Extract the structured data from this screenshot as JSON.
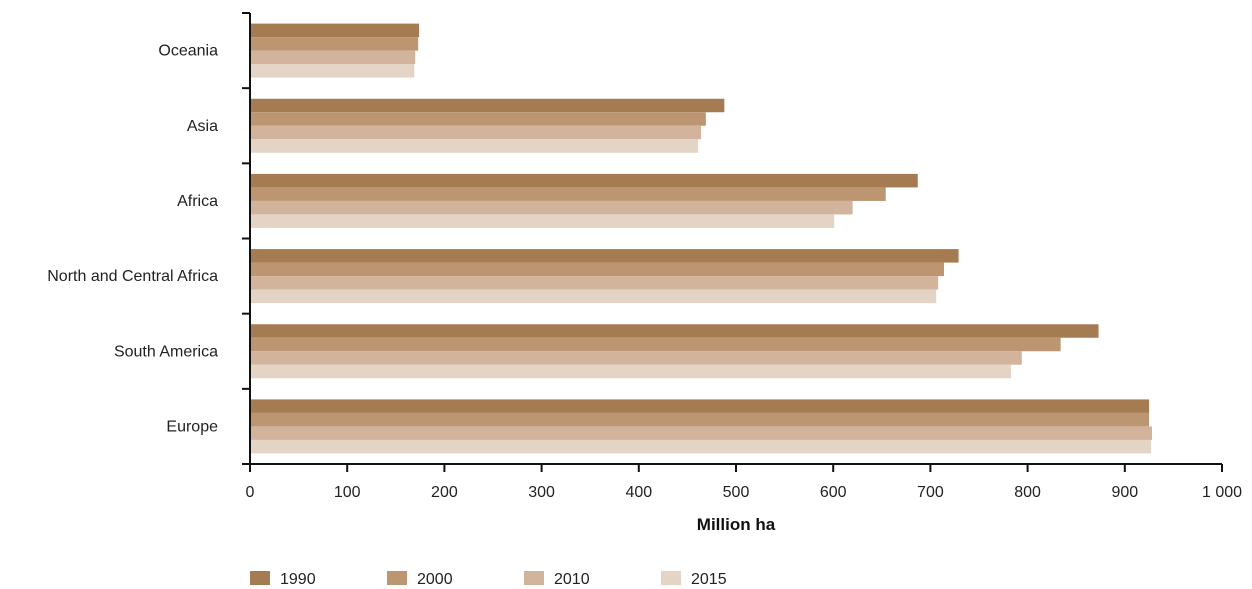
{
  "chart_data": {
    "type": "bar",
    "orientation": "horizontal",
    "categories": [
      "Europe",
      "South America",
      "North and Central Africa",
      "Africa",
      "Asia",
      "Oceania"
    ],
    "series": [
      {
        "name": "1990",
        "color": "#a57c52",
        "values": [
          925,
          873,
          729,
          687,
          488,
          174
        ]
      },
      {
        "name": "2000",
        "color": "#bb9670",
        "values": [
          925,
          834,
          714,
          654,
          469,
          173
        ]
      },
      {
        "name": "2010",
        "color": "#d2b39b",
        "values": [
          928,
          794,
          708,
          620,
          464,
          170
        ]
      },
      {
        "name": "2015",
        "color": "#e4d4c5",
        "values": [
          927,
          783,
          706,
          601,
          461,
          169
        ]
      }
    ],
    "xlabel": "Million ha",
    "xlim": [
      0,
      1000
    ],
    "xticks": [
      0,
      100,
      200,
      300,
      400,
      500,
      600,
      700,
      800,
      900,
      1000
    ],
    "xtick_labels": [
      "0",
      "100",
      "200",
      "300",
      "400",
      "500",
      "600",
      "700",
      "800",
      "900",
      "1 000"
    ],
    "grid": false,
    "legend_position": "bottom-left"
  }
}
